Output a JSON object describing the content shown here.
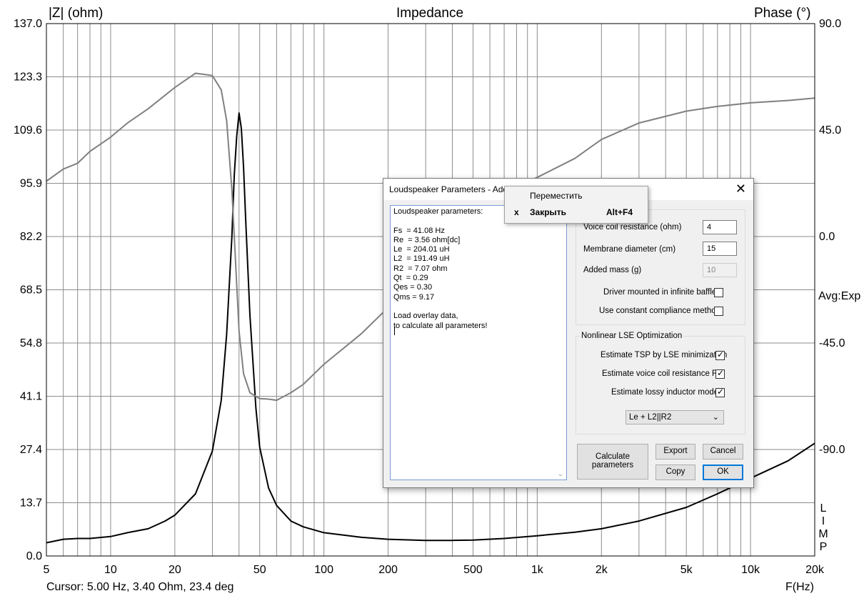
{
  "plot": {
    "title": "Impedance",
    "left_axis_label": "|Z| (ohm)",
    "right_axis_label": "Phase (°)",
    "avg_label": "Avg:Exp",
    "limp_label": [
      "L",
      "I",
      "M",
      "P"
    ],
    "cursor_readout": "Cursor: 5.00 Hz, 3.40 Ohm, 23.4 deg",
    "x_axis_label": "F(Hz)"
  },
  "chart_data": {
    "type": "line",
    "x_scale": "log",
    "xlim": [
      5,
      20000
    ],
    "ylim": [
      0,
      137
    ],
    "y2lim": [
      -135,
      90
    ],
    "x_tick_labels": [
      {
        "f": 5,
        "label": "5"
      },
      {
        "f": 10,
        "label": "10"
      },
      {
        "f": 20,
        "label": "20"
      },
      {
        "f": 50,
        "label": "50"
      },
      {
        "f": 100,
        "label": "100"
      },
      {
        "f": 200,
        "label": "200"
      },
      {
        "f": 500,
        "label": "500"
      },
      {
        "f": 1000,
        "label": "1k"
      },
      {
        "f": 2000,
        "label": "2k"
      },
      {
        "f": 5000,
        "label": "5k"
      },
      {
        "f": 10000,
        "label": "10k"
      },
      {
        "f": 20000,
        "label": "20k"
      }
    ],
    "y_ticks": [
      "137.0",
      "123.3",
      "109.6",
      "95.9",
      "82.2",
      "68.5",
      "54.8",
      "41.1",
      "27.4",
      "13.7",
      "0.0"
    ],
    "y2_ticks": [
      "90.0",
      "45.0",
      "0.0",
      "-45.0",
      "-90.0"
    ],
    "grid": true,
    "series": [
      {
        "axis": "left",
        "color": "#000000",
        "x": [
          5,
          6,
          7,
          8,
          10,
          12,
          15,
          18,
          20,
          25,
          30,
          33,
          35,
          37,
          38,
          39,
          40,
          41,
          42,
          43,
          45,
          48,
          50,
          55,
          60,
          70,
          80,
          100,
          150,
          200,
          300,
          400,
          500,
          700,
          1000,
          1500,
          2000,
          3000,
          5000,
          7000,
          10000,
          15000,
          20000
        ],
        "y": [
          3.4,
          4.3,
          4.5,
          4.5,
          5.0,
          6.0,
          7.0,
          9.0,
          10.5,
          16.0,
          27.0,
          40.0,
          57.0,
          82.0,
          98.0,
          108.0,
          114.0,
          110.0,
          100.0,
          86.0,
          62.0,
          38.0,
          28.0,
          17.5,
          13.0,
          9.0,
          7.5,
          6.0,
          4.8,
          4.3,
          4.0,
          4.0,
          4.1,
          4.5,
          5.2,
          6.1,
          7.0,
          9.0,
          12.5,
          16.0,
          20.0,
          24.5,
          29.0
        ]
      },
      {
        "axis": "right",
        "color": "#808080",
        "x": [
          5,
          6,
          7,
          8,
          10,
          12,
          15,
          20,
          25,
          30,
          33,
          35,
          37,
          38,
          40,
          42,
          45,
          50,
          55,
          60,
          70,
          80,
          100,
          150,
          200,
          300,
          400,
          500,
          700,
          1000,
          1500,
          2000,
          3000,
          5000,
          7000,
          10000,
          15000,
          20000
        ],
        "y": [
          23.4,
          28.5,
          31.0,
          36.0,
          42.0,
          48.0,
          54.0,
          63.0,
          69.0,
          68.0,
          62.0,
          49.0,
          20.0,
          0.0,
          -40.0,
          -58.0,
          -66.0,
          -68.5,
          -68.7,
          -69.2,
          -66.0,
          -62.5,
          -54.0,
          -41.0,
          -30.0,
          -14.0,
          -3.0,
          7.0,
          19.0,
          25.0,
          33.0,
          41.0,
          48.0,
          53.0,
          55.0,
          56.5,
          57.5,
          58.5
        ]
      }
    ]
  },
  "dialog": {
    "title": "Loudspeaker Parameters - Added Mass Method",
    "close_glyph": "✕",
    "results_text": "Loudspeaker parameters:\n\nFs  = 41.08 Hz\nRe  = 3.56 ohm[dc]\nLe  = 204.01 uH\nL2  = 191.49 uH\nR2  = 7.07 ohm\nQt  = 0.29\nQes = 0.30\nQms = 9.17\n\nLoad overlay data,\nto calculate all parameters!",
    "scroll_down_glyph": "⌄",
    "voice_coil_label": "Voice coil resistance (ohm)",
    "voice_coil_value": "4",
    "membrane_label": "Membrane diameter (cm)",
    "membrane_value": "15",
    "added_mass_label": "Added mass (g)",
    "added_mass_value": "10",
    "infinite_baffle_label": "Driver mounted in infinite baffle",
    "infinite_baffle_checked": false,
    "constant_compliance_label": "Use constant compliance method",
    "constant_compliance_checked": false,
    "lse_group_title": "Nonlinear LSE Optimization",
    "lse_tsp_label": "Estimate TSP by LSE minimization",
    "lse_tsp_checked": true,
    "lse_re_label": "Estimate voice coil resistance Re",
    "lse_re_checked": true,
    "lse_lossy_label": "Estimate lossy inductor model",
    "lse_lossy_checked": true,
    "model_select_value": "Le + L2||R2",
    "chevron_glyph": "⌄",
    "calculate_label_1": "Calculate",
    "calculate_label_2": "parameters",
    "export_label": "Export",
    "cancel_label": "Cancel",
    "copy_label": "Copy",
    "ok_label": "OK"
  },
  "context_menu": {
    "move_label": "Переместить",
    "close_icon": "x",
    "close_label": "Закрыть",
    "close_shortcut": "Alt+F4"
  }
}
